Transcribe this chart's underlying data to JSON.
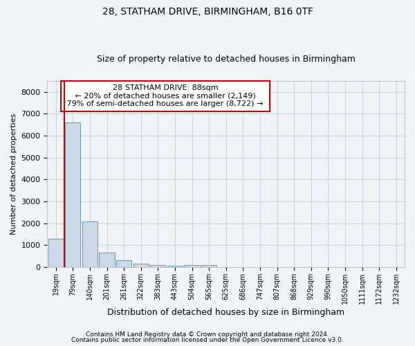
{
  "title1": "28, STATHAM DRIVE, BIRMINGHAM, B16 0TF",
  "title2": "Size of property relative to detached houses in Birmingham",
  "xlabel": "Distribution of detached houses by size in Birmingham",
  "ylabel": "Number of detached properties",
  "footer1": "Contains HM Land Registry data © Crown copyright and database right 2024.",
  "footer2": "Contains public sector information licensed under the Open Government Licence v3.0.",
  "annotation_title": "28 STATHAM DRIVE: 88sqm",
  "annotation_line2": "← 20% of detached houses are smaller (2,149)",
  "annotation_line3": "79% of semi-detached houses are larger (8,722) →",
  "bar_labels": [
    "19sqm",
    "79sqm",
    "140sqm",
    "201sqm",
    "261sqm",
    "322sqm",
    "383sqm",
    "443sqm",
    "504sqm",
    "565sqm",
    "625sqm",
    "686sqm",
    "747sqm",
    "807sqm",
    "868sqm",
    "929sqm",
    "990sqm",
    "1050sqm",
    "1111sqm",
    "1172sqm",
    "1232sqm"
  ],
  "bar_values": [
    1300,
    6600,
    2080,
    650,
    300,
    150,
    100,
    50,
    80,
    80,
    0,
    0,
    0,
    0,
    0,
    0,
    0,
    0,
    0,
    0,
    0
  ],
  "bar_color": "#ccd9e8",
  "bar_edge_color": "#6699bb",
  "vline_color": "#cc0000",
  "vline_x_index": 1,
  "annotation_box_color": "#cc0000",
  "fig_bg_color": "#f0f4f8",
  "ylim": [
    0,
    8500
  ],
  "yticks": [
    0,
    1000,
    2000,
    3000,
    4000,
    5000,
    6000,
    7000,
    8000
  ],
  "grid_color": "#c8d4e0",
  "title1_fontsize": 10,
  "title2_fontsize": 9,
  "xlabel_fontsize": 9,
  "ylabel_fontsize": 8,
  "tick_fontsize": 7,
  "annotation_fontsize": 8,
  "footer_fontsize": 6.5
}
